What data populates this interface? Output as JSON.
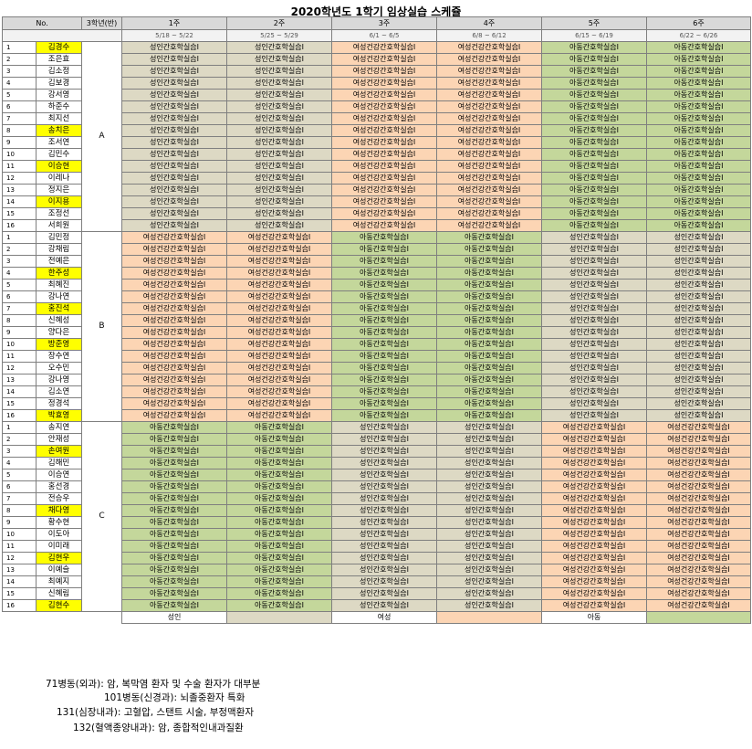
{
  "title": "2020학년도 1학기 임상실습 스케쥴",
  "headers": {
    "no": "No.",
    "cls": "3학년(반)",
    "weeks": [
      "1주",
      "2주",
      "3주",
      "4주",
      "5주",
      "6주"
    ]
  },
  "dates": [
    "5/18 ~ 5/22",
    "5/25 ~ 5/29",
    "6/1 ~ 6/5",
    "6/8 ~ 6/12",
    "6/15 ~ 6/19",
    "6/22 ~ 6/26"
  ],
  "colors": {
    "adult": "#ddd9c4",
    "women": "#fcd5b4",
    "child": "#c4d79b",
    "highlight": "#ffff00"
  },
  "courses": {
    "adult": "성인간호학실습Ⅰ",
    "women": "여성건강간호학실습Ⅰ",
    "child": "아동간호학실습Ⅰ"
  },
  "groups": [
    {
      "label": "A",
      "schedule": [
        "adult",
        "adult",
        "women",
        "women",
        "child",
        "child"
      ],
      "students": [
        {
          "no": "1",
          "name": "김경수",
          "highlight": true
        },
        {
          "no": "2",
          "name": "조은효",
          "highlight": false
        },
        {
          "no": "3",
          "name": "김소정",
          "highlight": false
        },
        {
          "no": "4",
          "name": "김보경",
          "highlight": false
        },
        {
          "no": "5",
          "name": "강서영",
          "highlight": false
        },
        {
          "no": "6",
          "name": "하준수",
          "highlight": false
        },
        {
          "no": "7",
          "name": "최지선",
          "highlight": false
        },
        {
          "no": "8",
          "name": "송치은",
          "highlight": true
        },
        {
          "no": "9",
          "name": "조서연",
          "highlight": false
        },
        {
          "no": "10",
          "name": "김민수",
          "highlight": false
        },
        {
          "no": "11",
          "name": "이승현",
          "highlight": true
        },
        {
          "no": "12",
          "name": "이레나",
          "highlight": false
        },
        {
          "no": "13",
          "name": "정지은",
          "highlight": false
        },
        {
          "no": "14",
          "name": "이지용",
          "highlight": true
        },
        {
          "no": "15",
          "name": "조정선",
          "highlight": false
        },
        {
          "no": "16",
          "name": "서희원",
          "highlight": false
        }
      ]
    },
    {
      "label": "B",
      "schedule": [
        "women",
        "women",
        "child",
        "child",
        "adult",
        "adult"
      ],
      "students": [
        {
          "no": "1",
          "name": "김민정",
          "highlight": false
        },
        {
          "no": "2",
          "name": "강채림",
          "highlight": false
        },
        {
          "no": "3",
          "name": "전예은",
          "highlight": false
        },
        {
          "no": "4",
          "name": "한주성",
          "highlight": true
        },
        {
          "no": "5",
          "name": "최혜진",
          "highlight": false
        },
        {
          "no": "6",
          "name": "강나연",
          "highlight": false
        },
        {
          "no": "7",
          "name": "홍진석",
          "highlight": true
        },
        {
          "no": "8",
          "name": "신혜성",
          "highlight": false
        },
        {
          "no": "9",
          "name": "양다은",
          "highlight": false
        },
        {
          "no": "10",
          "name": "방준영",
          "highlight": true
        },
        {
          "no": "11",
          "name": "장수연",
          "highlight": false
        },
        {
          "no": "12",
          "name": "오수민",
          "highlight": false
        },
        {
          "no": "13",
          "name": "강나영",
          "highlight": false
        },
        {
          "no": "14",
          "name": "김소연",
          "highlight": false
        },
        {
          "no": "15",
          "name": "정경석",
          "highlight": false
        },
        {
          "no": "16",
          "name": "박효영",
          "highlight": true
        }
      ]
    },
    {
      "label": "C",
      "schedule": [
        "child",
        "child",
        "adult",
        "adult",
        "women",
        "women"
      ],
      "students": [
        {
          "no": "1",
          "name": "송지연",
          "highlight": false
        },
        {
          "no": "2",
          "name": "안재성",
          "highlight": false
        },
        {
          "no": "3",
          "name": "손여원",
          "highlight": true
        },
        {
          "no": "4",
          "name": "김해민",
          "highlight": false
        },
        {
          "no": "5",
          "name": "이승연",
          "highlight": false
        },
        {
          "no": "6",
          "name": "홍선경",
          "highlight": false
        },
        {
          "no": "7",
          "name": "전승우",
          "highlight": false
        },
        {
          "no": "8",
          "name": "채다영",
          "highlight": true
        },
        {
          "no": "9",
          "name": "황수현",
          "highlight": false
        },
        {
          "no": "10",
          "name": "이도아",
          "highlight": false
        },
        {
          "no": "11",
          "name": "이미래",
          "highlight": false
        },
        {
          "no": "12",
          "name": "김현우",
          "highlight": true
        },
        {
          "no": "13",
          "name": "이예슬",
          "highlight": false
        },
        {
          "no": "14",
          "name": "최예지",
          "highlight": false
        },
        {
          "no": "15",
          "name": "신혜림",
          "highlight": false
        },
        {
          "no": "16",
          "name": "김현수",
          "highlight": true
        }
      ]
    }
  ],
  "legend": [
    {
      "label": "성인",
      "color": "#ddd9c4"
    },
    {
      "label": "여성",
      "color": "#fcd5b4"
    },
    {
      "label": "아동",
      "color": "#c4d79b"
    }
  ],
  "notes": [
    "71병동(외과): 암, 복막염 환자 및 수술 환자가 대부분",
    "101병동(신경과): 뇌졸중환자 특화",
    "131(심장내과): 고혈압, 스탠트 시술, 부정맥환자",
    "132(혈액종양내과): 암, 종합적인내과질환"
  ]
}
